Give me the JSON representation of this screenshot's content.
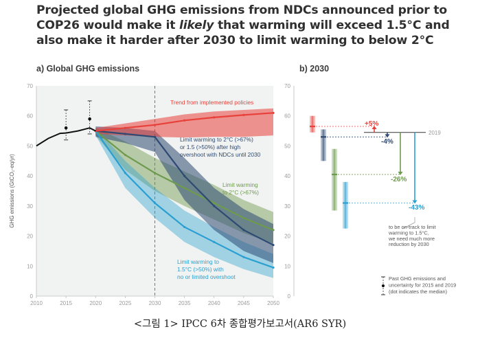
{
  "title": {
    "part1": "Projected global GHG emissions from NDCs announced prior to COP26 would make it ",
    "emph": "likely",
    "part2": " that warming will exceed 1.5°C and also make it harder after 2030 to limit warming to below 2°C"
  },
  "caption": "<그림 1> IPCC 6차 종합평가보고서(AR6 SYR)",
  "colors": {
    "historical": "#111111",
    "policies": "#e8403a",
    "ndc": "#2e4a73",
    "two_deg": "#6e9a4e",
    "one_five": "#2a9fd0",
    "plot_bg": "#f1f3f2"
  },
  "chart_data": [
    {
      "type": "line",
      "panel": "a",
      "title": "a) Global GHG emissions",
      "ylabel": "GHG emissions (GtCO₂-eq/yr)",
      "xlabel": "",
      "xlim": [
        2010,
        2050
      ],
      "ylim": [
        0,
        70
      ],
      "xticks": [
        2010,
        2015,
        2020,
        2025,
        2030,
        2035,
        2040,
        2045,
        2050
      ],
      "yticks": [
        0,
        10,
        20,
        30,
        40,
        50,
        60,
        70
      ],
      "grid": false,
      "reference_line_x": 2030,
      "series": [
        {
          "key": "historical",
          "x": [
            2010,
            2012,
            2014,
            2015,
            2017,
            2019,
            2020
          ],
          "y": [
            50,
            52.5,
            54.2,
            54.3,
            55,
            56,
            55
          ]
        },
        {
          "key": "policies",
          "x": [
            2020,
            2025,
            2030,
            2035,
            2040,
            2045,
            2050
          ],
          "median": [
            55,
            56,
            57,
            58.5,
            59.5,
            60.3,
            61
          ],
          "low": [
            54,
            53.5,
            53,
            52.8,
            53,
            53,
            53.5
          ],
          "high": [
            56,
            57.5,
            59,
            60.5,
            61.5,
            62,
            62.5
          ]
        },
        {
          "key": "ndc",
          "x": [
            2020,
            2025,
            2030,
            2035,
            2040,
            2045,
            2050
          ],
          "median": [
            55,
            54,
            53,
            40,
            30,
            22,
            17
          ],
          "low": [
            53,
            51,
            48,
            32,
            22,
            15,
            11
          ],
          "high": [
            56.5,
            56,
            55,
            46,
            36,
            29,
            24
          ]
        },
        {
          "key": "two_deg",
          "x": [
            2020,
            2025,
            2030,
            2035,
            2040,
            2045,
            2050
          ],
          "median": [
            55,
            47,
            41,
            36,
            31,
            26,
            22
          ],
          "low": [
            53.5,
            42,
            35,
            30,
            25.5,
            21,
            17.5
          ],
          "high": [
            56,
            51.5,
            46,
            41.5,
            37,
            32,
            28
          ]
        },
        {
          "key": "one_five",
          "x": [
            2020,
            2025,
            2030,
            2035,
            2040,
            2045,
            2050
          ],
          "median": [
            55,
            41,
            31,
            23,
            18,
            13,
            9.5
          ],
          "low": [
            53.5,
            36,
            26,
            18,
            13,
            9,
            6
          ],
          "high": [
            56,
            45,
            36,
            28.5,
            23,
            18,
            14
          ]
        }
      ],
      "uncertainty_markers": [
        {
          "x": 2015,
          "median": 56,
          "low": 52,
          "high": 62
        },
        {
          "x": 2019,
          "median": 59,
          "low": 54,
          "high": 65
        }
      ],
      "annotations": {
        "policies": "Trend from implemented policies",
        "ndc": [
          "Limit warming to 2°C (>67%)",
          "or 1.5 (>50%) after high",
          "overshoot with NDCs until 2030"
        ],
        "two_deg": [
          "Limit warming",
          "to 2°C (>67%)"
        ],
        "one_five": [
          "Limit warming to",
          "1.5°C (>50%) with",
          "no or limited overshoot"
        ]
      }
    },
    {
      "type": "bar",
      "panel": "b",
      "title": "b) 2030",
      "ylim": [
        0,
        70
      ],
      "yticks": [
        0,
        10,
        20,
        30,
        40,
        50,
        60,
        70
      ],
      "reference_2019": {
        "label": "2019",
        "value": 54.5
      },
      "ranges": [
        {
          "key": "policies",
          "low": 54.5,
          "high": 60,
          "median": 56.5
        },
        {
          "key": "ndc",
          "low": 45,
          "high": 55.5,
          "median": 53
        },
        {
          "key": "two_deg",
          "low": 28.5,
          "high": 49,
          "median": 40.5
        },
        {
          "key": "one_five",
          "low": 22.5,
          "high": 38,
          "median": 31
        }
      ],
      "changes": [
        {
          "key": "policies",
          "label": "+5%"
        },
        {
          "key": "ndc",
          "label": "-4%"
        },
        {
          "key": "two_deg",
          "label": "-26%"
        },
        {
          "key": "one_five",
          "label": "-43%"
        }
      ],
      "note_1": [
        "to be on-track to limit",
        "warming to 1.5°C,",
        "we need much more",
        "reduction by 2030"
      ],
      "legend_note": [
        "Past GHG emissions and",
        "uncertainty for 2015 and 2019",
        "(dot indicates the median)"
      ]
    }
  ]
}
